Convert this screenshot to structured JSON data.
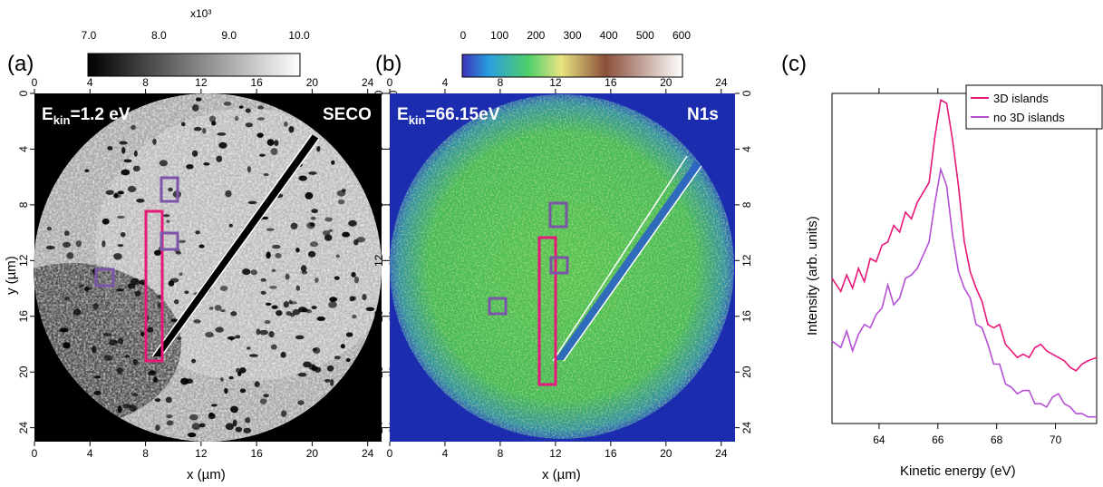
{
  "figure": {
    "panel_a": {
      "label": "(a)",
      "colorbar": {
        "ticks": [
          "7.0",
          "8.0",
          "9.0",
          "10.0"
        ],
        "multiplier": "x10³",
        "colors": [
          "#000000",
          "#ffffff"
        ]
      },
      "x_ticks": [
        "0",
        "4",
        "8",
        "12",
        "16",
        "20",
        "24"
      ],
      "y_ticks": [
        "0",
        "4",
        "8",
        "12",
        "16",
        "20",
        "24"
      ],
      "xlabel": "x (µm)",
      "ylabel": "y (µm)",
      "energy_label": "E",
      "energy_sub": "kin",
      "energy_value": "=1.2 eV",
      "tag": "SECO"
    },
    "panel_b": {
      "label": "(b)",
      "colorbar": {
        "ticks": [
          "0",
          "100",
          "200",
          "300",
          "400",
          "500",
          "600"
        ],
        "colors": [
          "#3a33b8",
          "#2a9ee0",
          "#4fcf6a",
          "#e8e480",
          "#8a4e3a",
          "#ffffff"
        ]
      },
      "x_ticks": [
        "0",
        "4",
        "8",
        "12",
        "16",
        "20",
        "24"
      ],
      "y_ticks": [
        "0",
        "4",
        "8",
        "12",
        "16",
        "20",
        "24"
      ],
      "xlabel": "x (µm)",
      "energy_label": "E",
      "energy_sub": "kin",
      "energy_value": "=66.15eV",
      "tag": "N1s"
    },
    "panel_c": {
      "label": "(c)",
      "xlabel": "Kinetic energy (eV)",
      "ylabel": "Intensity (arb. units)",
      "x_ticks": [
        "64",
        "66",
        "68",
        "70"
      ],
      "legend": [
        "3D islands",
        "no 3D islands"
      ],
      "colors": {
        "series1": "#e8177a",
        "series2": "#b44fd6"
      }
    },
    "marker_colors": {
      "pink": "#e8177a",
      "purple": "#7c55a8"
    }
  },
  "chart_data": {
    "type": "line",
    "xlabel": "Kinetic energy (eV)",
    "ylabel": "Intensity (arb. units)",
    "xlim": [
      62.4,
      71.4
    ],
    "ylim": [
      0,
      1
    ],
    "legend_position": "top-right",
    "series": [
      {
        "name": "3D islands",
        "x": [
          62.4,
          62.7,
          62.9,
          63.1,
          63.3,
          63.5,
          63.7,
          63.9,
          64.1,
          64.3,
          64.5,
          64.7,
          64.9,
          65.1,
          65.3,
          65.5,
          65.7,
          65.9,
          66.1,
          66.3,
          66.5,
          66.7,
          66.9,
          67.1,
          67.3,
          67.5,
          67.7,
          67.9,
          68.1,
          68.3,
          68.5,
          68.7,
          68.9,
          69.1,
          69.3,
          69.5,
          69.7,
          69.9,
          70.1,
          70.3,
          70.5,
          70.7,
          70.9,
          71.1,
          71.4
        ],
        "y": [
          0.44,
          0.4,
          0.45,
          0.41,
          0.47,
          0.43,
          0.5,
          0.49,
          0.54,
          0.55,
          0.6,
          0.58,
          0.64,
          0.62,
          0.67,
          0.7,
          0.73,
          0.87,
          0.98,
          0.97,
          0.86,
          0.72,
          0.55,
          0.46,
          0.41,
          0.37,
          0.3,
          0.29,
          0.3,
          0.24,
          0.22,
          0.2,
          0.21,
          0.2,
          0.23,
          0.24,
          0.22,
          0.21,
          0.2,
          0.19,
          0.17,
          0.16,
          0.18,
          0.19,
          0.2
        ]
      },
      {
        "name": "no 3D islands",
        "x": [
          62.4,
          62.7,
          62.9,
          63.1,
          63.3,
          63.5,
          63.7,
          63.9,
          64.1,
          64.3,
          64.5,
          64.7,
          64.9,
          65.1,
          65.3,
          65.5,
          65.7,
          65.9,
          66.1,
          66.3,
          66.5,
          66.7,
          66.9,
          67.1,
          67.3,
          67.5,
          67.7,
          67.9,
          68.1,
          68.3,
          68.5,
          68.7,
          68.9,
          69.1,
          69.3,
          69.5,
          69.7,
          69.9,
          70.1,
          70.3,
          70.5,
          70.7,
          70.9,
          71.1,
          71.4
        ],
        "y": [
          0.25,
          0.23,
          0.28,
          0.22,
          0.27,
          0.3,
          0.29,
          0.33,
          0.35,
          0.42,
          0.36,
          0.38,
          0.44,
          0.45,
          0.47,
          0.51,
          0.55,
          0.67,
          0.77,
          0.72,
          0.57,
          0.46,
          0.41,
          0.38,
          0.3,
          0.29,
          0.24,
          0.18,
          0.18,
          0.12,
          0.11,
          0.09,
          0.1,
          0.1,
          0.06,
          0.06,
          0.05,
          0.08,
          0.09,
          0.06,
          0.05,
          0.03,
          0.03,
          0.02,
          0.02
        ]
      }
    ]
  }
}
